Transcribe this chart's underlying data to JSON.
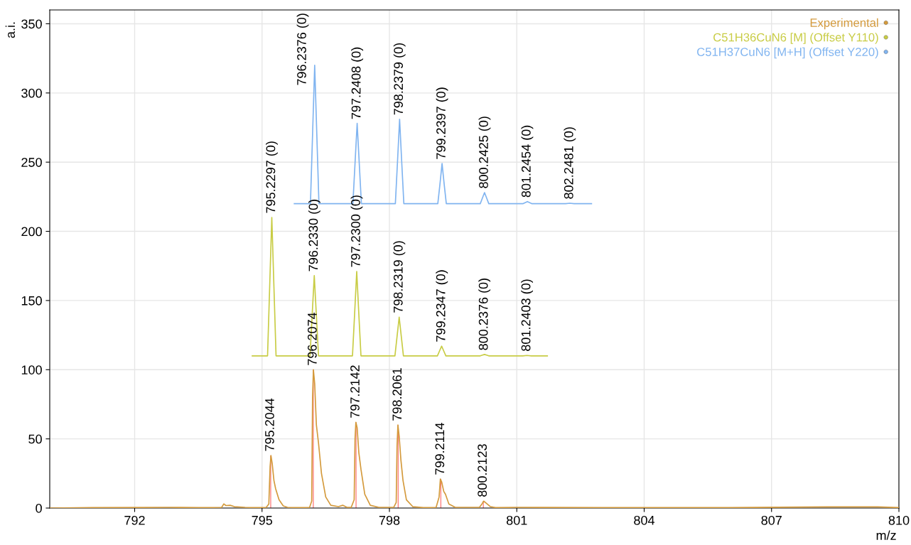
{
  "chart_data": {
    "type": "line",
    "xlabel": "m/z",
    "ylabel": "a.i.",
    "xlim": [
      790,
      810
    ],
    "xticks": [
      792,
      795,
      798,
      801,
      804,
      807,
      810
    ],
    "ylim": [
      0,
      360
    ],
    "yticks": [
      0,
      50,
      100,
      150,
      200,
      250,
      300,
      350
    ],
    "grid": true,
    "legend": "top right",
    "series": [
      {
        "name": "Experimental",
        "color": "#d49a3c",
        "x": [
          790,
          791,
          792.8,
          793.5,
          794.05,
          794.1,
          794.15,
          794.25,
          794.35,
          794.6,
          794.9,
          795.1,
          795.16,
          795.19,
          795.21,
          795.24,
          795.28,
          795.32,
          795.4,
          795.5,
          795.6,
          795.9,
          796.12,
          796.17,
          796.19,
          796.21,
          796.24,
          796.28,
          796.33,
          796.4,
          796.5,
          796.62,
          796.8,
          796.9,
          797.0,
          797.1,
          797.17,
          797.19,
          797.21,
          797.24,
          797.28,
          797.33,
          797.42,
          797.55,
          797.75,
          798.1,
          798.16,
          798.18,
          798.2,
          798.23,
          798.27,
          798.32,
          798.4,
          798.55,
          798.8,
          799.1,
          799.17,
          799.2,
          799.23,
          799.28,
          799.32,
          799.4,
          799.55,
          800.12,
          800.18,
          800.22,
          800.28,
          800.38,
          800.5,
          801.0,
          803,
          806,
          808.3,
          809.5,
          810
        ],
        "values": [
          0,
          0.3,
          0.5,
          0.3,
          0.5,
          3,
          1.8,
          2,
          1,
          0.5,
          0.3,
          0.5,
          3,
          30,
          38,
          32,
          20,
          14,
          6,
          1.5,
          0.5,
          0.3,
          0.5,
          5,
          80,
          100,
          90,
          60,
          47,
          25,
          8,
          2,
          1,
          2,
          0.5,
          0.5,
          6,
          50,
          62,
          58,
          40,
          28,
          10,
          2,
          0.5,
          0.5,
          4,
          45,
          60,
          52,
          35,
          20,
          6,
          1,
          0.3,
          0.5,
          8,
          21,
          19,
          12,
          10,
          3,
          0.5,
          0.5,
          3,
          5,
          3.5,
          1,
          0.3,
          0.5,
          0.3,
          0.3,
          0.8,
          0.8,
          0.3
        ]
      },
      {
        "type": "bar",
        "color": "#ff7070",
        "x": [
          795.2044,
          796.2074,
          797.2142,
          798.2061,
          799.2114,
          800.2123
        ],
        "values": [
          38,
          100,
          62,
          60,
          21,
          5
        ]
      },
      {
        "name": "C51H36CuN6 [M] (Offset Y110)",
        "color": "#c8cc44",
        "x": [
          794.77,
          795.13,
          795.18,
          795.23,
          795.28,
          795.33,
          796.13,
          796.18,
          796.23,
          796.28,
          796.33,
          797.13,
          797.18,
          797.23,
          797.28,
          797.33,
          798.13,
          798.18,
          798.23,
          798.28,
          798.33,
          799.13,
          799.18,
          799.23,
          799.28,
          799.33,
          800.14,
          800.19,
          800.24,
          800.29,
          800.34,
          801.14,
          801.24,
          801.34,
          801.72
        ],
        "values": [
          110,
          110,
          160,
          210,
          160,
          110,
          110,
          139,
          168,
          139,
          110,
          110,
          140,
          171,
          140,
          110,
          110,
          124,
          138,
          124,
          110,
          110,
          113.5,
          117,
          113.5,
          110,
          110,
          110.5,
          111,
          110.5,
          110,
          110,
          110.3,
          110,
          110
        ]
      },
      {
        "name": "C51H37CuN6 [M+H] (Offset Y220)",
        "color": "#80b4f0",
        "x": [
          795.76,
          796.14,
          796.19,
          796.24,
          796.29,
          796.34,
          797.14,
          797.19,
          797.24,
          797.29,
          797.34,
          798.14,
          798.19,
          798.24,
          798.29,
          798.34,
          799.14,
          799.19,
          799.24,
          799.29,
          799.34,
          800.14,
          800.19,
          800.24,
          800.29,
          800.34,
          801.15,
          801.25,
          801.35,
          802.15,
          802.25,
          802.35,
          802.76
        ],
        "values": [
          220,
          220,
          270,
          320,
          270,
          220,
          220,
          249,
          278,
          249,
          220,
          220,
          250,
          281,
          250,
          220,
          220,
          234,
          249,
          234,
          220,
          220,
          224,
          228,
          224,
          220,
          220,
          221.5,
          220,
          220,
          220.3,
          220,
          220
        ]
      }
    ],
    "annotations": [
      {
        "text": "795.2044",
        "x": 795.2044,
        "y": 38
      },
      {
        "text": "796.2074",
        "x": 796.2074,
        "y": 100
      },
      {
        "text": "797.2142",
        "x": 797.2142,
        "y": 62
      },
      {
        "text": "798.2061",
        "x": 798.2061,
        "y": 60
      },
      {
        "text": "799.2114",
        "x": 799.2114,
        "y": 21
      },
      {
        "text": "800.2123",
        "x": 800.2123,
        "y": 5
      },
      {
        "text": "795.2297 (0)",
        "x": 795.2297,
        "y": 210
      },
      {
        "text": "796.2330 (0)",
        "x": 796.233,
        "y": 168
      },
      {
        "text": "797.2300 (0)",
        "x": 797.23,
        "y": 171
      },
      {
        "text": "798.2319 (0)",
        "x": 798.2319,
        "y": 138
      },
      {
        "text": "799.2347 (0)",
        "x": 799.2347,
        "y": 117
      },
      {
        "text": "800.2376 (0)",
        "x": 800.2376,
        "y": 111
      },
      {
        "text": "801.2403 (0)",
        "x": 801.2403,
        "y": 110.3
      },
      {
        "text": "796.2376 (0)",
        "x": 796.2376,
        "y": 320
      },
      {
        "text": "797.2408 (0)",
        "x": 797.2408,
        "y": 278
      },
      {
        "text": "798.2379 (0)",
        "x": 798.2379,
        "y": 281
      },
      {
        "text": "799.2397 (0)",
        "x": 799.2397,
        "y": 249
      },
      {
        "text": "800.2425 (0)",
        "x": 800.2425,
        "y": 228
      },
      {
        "text": "801.2454 (0)",
        "x": 801.2454,
        "y": 221.5
      },
      {
        "text": "802.2481 (0)",
        "x": 802.2481,
        "y": 220.3
      }
    ]
  }
}
